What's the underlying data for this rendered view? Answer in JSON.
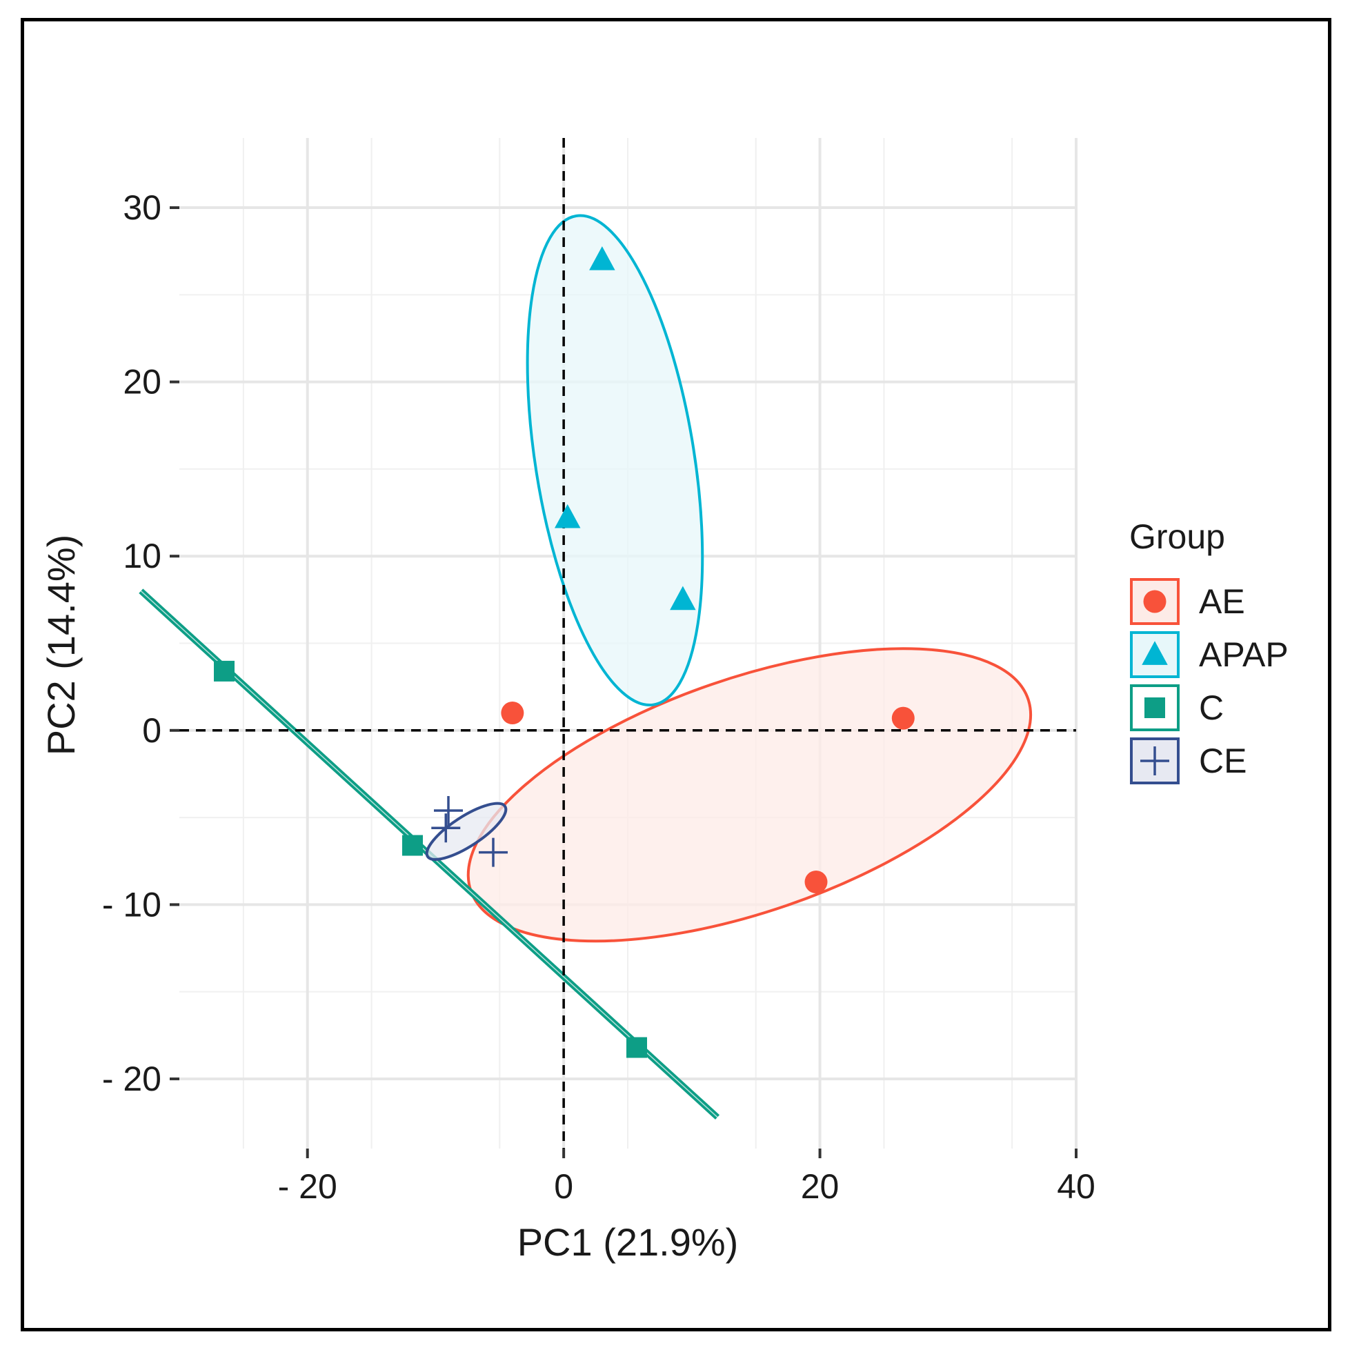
{
  "chart_data": {
    "type": "scatter",
    "subtype": "pca-score-plot",
    "xlabel": "PC1 (21.9%)",
    "ylabel": "PC2 (14.4%)",
    "xlim": [
      -30,
      40
    ],
    "ylim": [
      -24,
      34
    ],
    "x_ticks": [
      -20,
      0,
      20,
      40
    ],
    "y_ticks": [
      -20,
      -10,
      0,
      10,
      20,
      30
    ],
    "x_tick_labels": [
      "- 20",
      "0",
      "20",
      "40"
    ],
    "y_tick_labels": [
      "- 20",
      "- 10",
      "0",
      "10",
      "20",
      "30"
    ],
    "reference_lines": {
      "x": 0,
      "y": 0,
      "style": "dashed"
    },
    "legend": {
      "title": "Group",
      "position": "right"
    },
    "series": [
      {
        "name": "AE",
        "marker": "circle",
        "color": "#F8523A",
        "fill": "#FDEBE7",
        "points": [
          [
            -4,
            1
          ],
          [
            26.5,
            0.7
          ],
          [
            19.7,
            -8.7
          ]
        ],
        "ellipse": {
          "center": [
            14.5,
            -3.7
          ],
          "rx": 23,
          "ry": 6.7,
          "angle_deg": -19
        }
      },
      {
        "name": "APAP",
        "marker": "triangle",
        "color": "#00B5D3",
        "fill": "#E7F7FA",
        "points": [
          [
            3,
            27
          ],
          [
            0.3,
            12.2
          ],
          [
            9.3,
            7.5
          ]
        ],
        "ellipse": {
          "center": [
            4,
            15.5
          ],
          "rx": 6.2,
          "ry": 14.2,
          "angle_deg": -9
        }
      },
      {
        "name": "C",
        "marker": "square",
        "color": "#0D9E86",
        "points": [
          [
            -26.5,
            3.4
          ],
          [
            -11.8,
            -6.6
          ],
          [
            5.7,
            -18.2
          ]
        ],
        "ellipse": {
          "type": "degenerate-line",
          "from": [
            -33,
            8
          ],
          "to": [
            12,
            -22.2
          ]
        }
      },
      {
        "name": "CE",
        "marker": "cross",
        "color": "#344E8F",
        "fill": "#E7E9F2",
        "points": [
          [
            -9,
            -4.6
          ],
          [
            -9.2,
            -5.6
          ],
          [
            -5.5,
            -7
          ]
        ],
        "ellipse": {
          "center": [
            -7.6,
            -5.8
          ],
          "rx": 3.6,
          "ry": 0.85,
          "angle_deg": -33
        }
      }
    ]
  }
}
